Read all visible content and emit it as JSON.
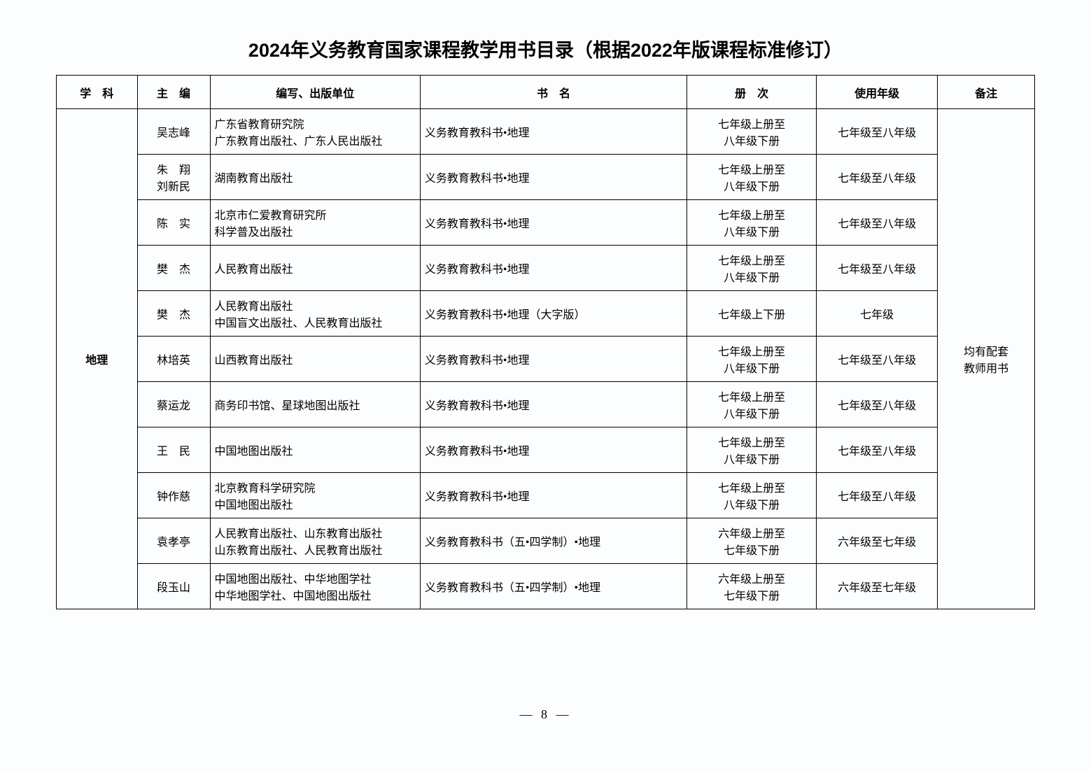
{
  "title": "2024年义务教育国家课程教学用书目录（根据2022年版课程标准修订）",
  "headers": {
    "subject": "学　科",
    "editor": "主　编",
    "publisher": "编写、出版单位",
    "bookTitle": "书　名",
    "volume": "册　次",
    "grade": "使用年级",
    "notes": "备注"
  },
  "subject": "地理",
  "notes": "均有配套\n教师用书",
  "rows": [
    {
      "editor": "吴志峰",
      "publisher": "广东省教育研究院\n广东教育出版社、广东人民出版社",
      "bookTitle": "义务教育教科书•地理",
      "volume": "七年级上册至\n八年级下册",
      "grade": "七年级至八年级"
    },
    {
      "editor": "朱　翔\n刘新民",
      "publisher": "湖南教育出版社",
      "bookTitle": "义务教育教科书•地理",
      "volume": "七年级上册至\n八年级下册",
      "grade": "七年级至八年级"
    },
    {
      "editor": "陈　实",
      "publisher": "北京市仁爱教育研究所\n科学普及出版社",
      "bookTitle": "义务教育教科书•地理",
      "volume": "七年级上册至\n八年级下册",
      "grade": "七年级至八年级"
    },
    {
      "editor": "樊　杰",
      "publisher": "人民教育出版社",
      "bookTitle": "义务教育教科书•地理",
      "volume": "七年级上册至\n八年级下册",
      "grade": "七年级至八年级"
    },
    {
      "editor": "樊　杰",
      "publisher": "人民教育出版社\n中国盲文出版社、人民教育出版社",
      "bookTitle": "义务教育教科书•地理（大字版）",
      "volume": "七年级上下册",
      "grade": "七年级"
    },
    {
      "editor": "林培英",
      "publisher": "山西教育出版社",
      "bookTitle": "义务教育教科书•地理",
      "volume": "七年级上册至\n八年级下册",
      "grade": "七年级至八年级"
    },
    {
      "editor": "蔡运龙",
      "publisher": "商务印书馆、星球地图出版社",
      "bookTitle": "义务教育教科书•地理",
      "volume": "七年级上册至\n八年级下册",
      "grade": "七年级至八年级"
    },
    {
      "editor": "王　民",
      "publisher": "中国地图出版社",
      "bookTitle": "义务教育教科书•地理",
      "volume": "七年级上册至\n八年级下册",
      "grade": "七年级至八年级"
    },
    {
      "editor": "钟作慈",
      "publisher": "北京教育科学研究院\n中国地图出版社",
      "bookTitle": "义务教育教科书•地理",
      "volume": "七年级上册至\n八年级下册",
      "grade": "七年级至八年级"
    },
    {
      "editor": "袁孝亭",
      "publisher": "人民教育出版社、山东教育出版社\n山东教育出版社、人民教育出版社",
      "bookTitle": "义务教育教科书（五•四学制）•地理",
      "volume": "六年级上册至\n七年级下册",
      "grade": "六年级至七年级"
    },
    {
      "editor": "段玉山",
      "publisher": "中国地图出版社、中华地图学社\n中华地图学社、中国地图出版社",
      "bookTitle": "义务教育教科书（五•四学制）•地理",
      "volume": "六年级上册至\n七年级下册",
      "grade": "六年级至七年级"
    }
  ],
  "pageNumber": "— 8 —"
}
